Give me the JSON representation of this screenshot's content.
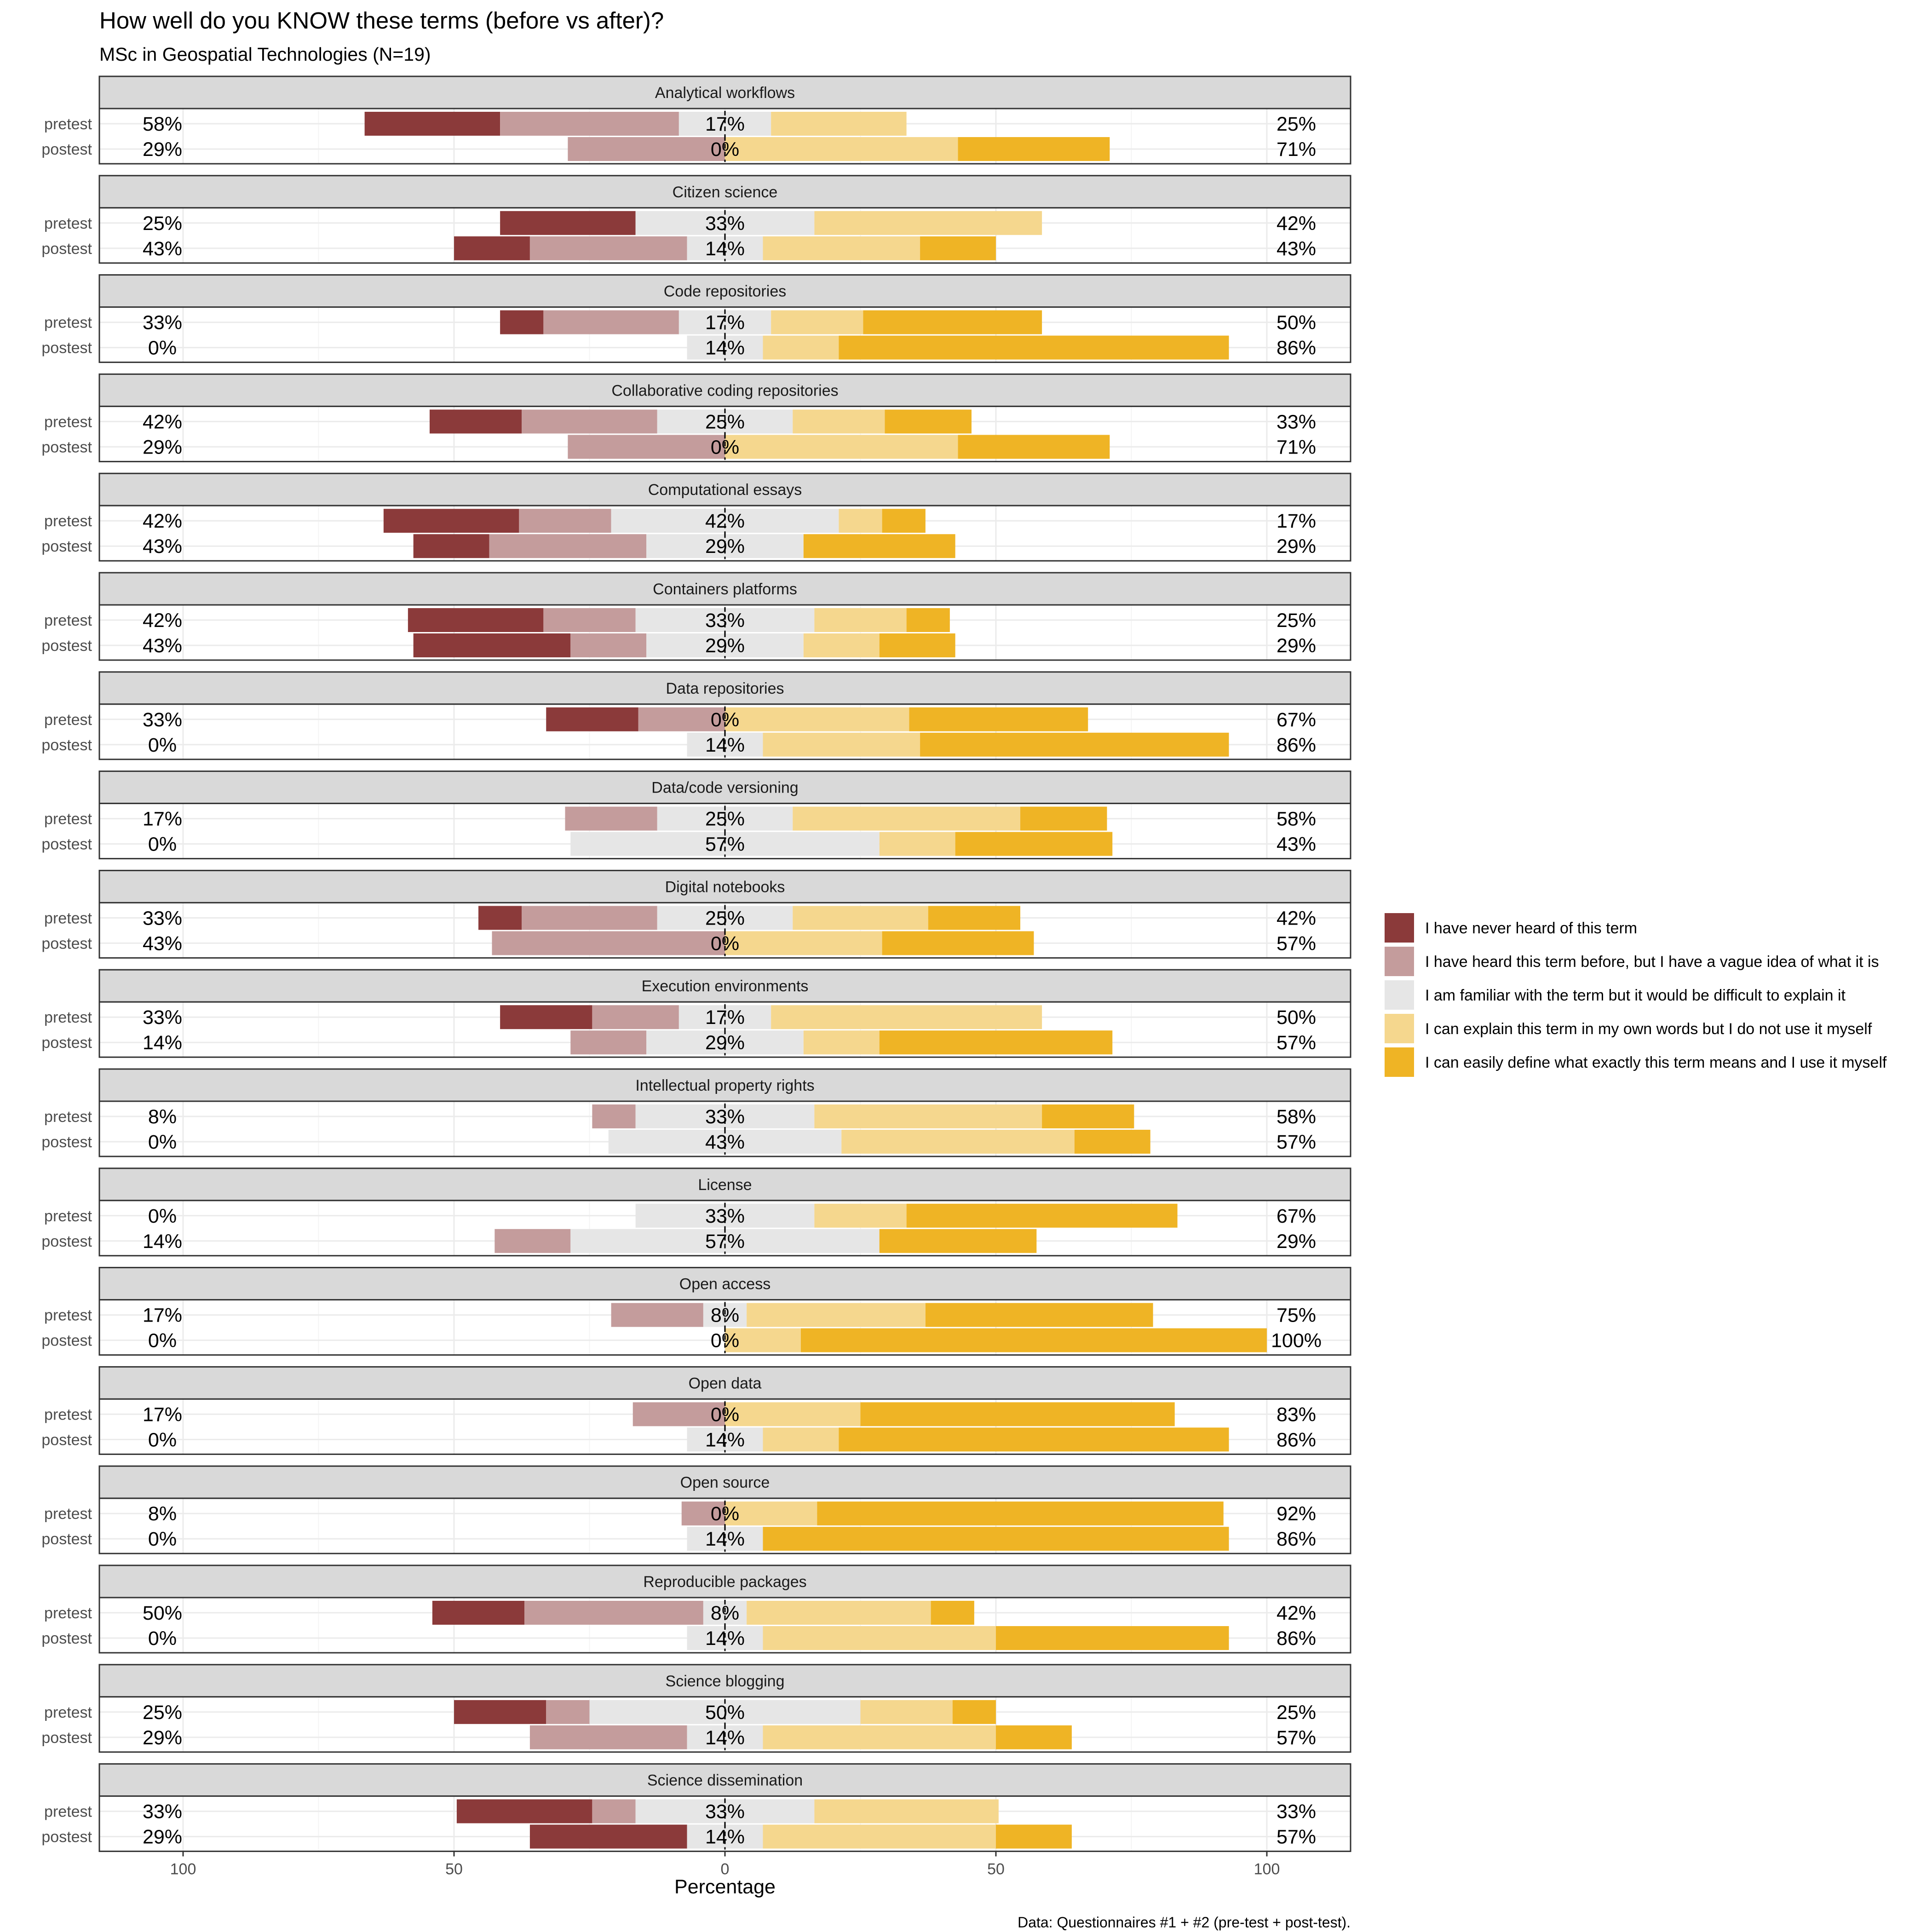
{
  "title": "How well do you KNOW these terms (before vs after)?",
  "subtitle": "MSc in Geospatial Technologies (N=19)",
  "caption": "Data: Questionnaires #1 + #2 (pre-test + post-test).",
  "colors": {
    "I have never heard of this term": "#8B3A3A",
    "I have heard this term before, but I have a vague idea of what it is": "#C49C9C",
    "I am familiar with the term but it would be difficult to explain it": "#E6E6E6",
    "I can explain this term in my own words but I do not use it myself": "#F5D78E",
    "I can easily define what exactly this term means and I use it myself": "#EFB425"
  },
  "chart_data": {
    "type": "bar",
    "orientation": "horizontal-diverging-stacked",
    "title": "How well do you KNOW these terms (before vs after)?",
    "subtitle": "MSc in Geospatial Technologies (N=19)",
    "xlabel": "Percentage",
    "ylabel": "",
    "xlim": [
      -115,
      115
    ],
    "xticks": [
      -100,
      -50,
      0,
      50,
      100
    ],
    "xticklabels": [
      "100",
      "50",
      "0",
      "50",
      "100"
    ],
    "grid": true,
    "legend_position": "right",
    "levels": [
      "I have never heard of this term",
      "I have heard this term before, but I have a vague idea of what it is",
      "I am familiar with the term but it would be difficult to explain it",
      "I can explain this term in my own words but I do not use it myself",
      "I can easily define what exactly this term means and I use it myself"
    ],
    "rows": [
      "pretest",
      "postest"
    ],
    "panels": [
      {
        "term": "Analytical workflows",
        "pretest": {
          "values": [
            25,
            33,
            17,
            25,
            0
          ],
          "left": "58%",
          "center": "17%",
          "right": "25%"
        },
        "postest": {
          "values": [
            0,
            29,
            0,
            43,
            28
          ],
          "left": "29%",
          "center": "0%",
          "right": "71%"
        }
      },
      {
        "term": "Citizen science",
        "pretest": {
          "values": [
            25,
            0,
            33,
            42,
            0
          ],
          "left": "25%",
          "center": "33%",
          "right": "42%"
        },
        "postest": {
          "values": [
            14,
            29,
            14,
            29,
            14
          ],
          "left": "43%",
          "center": "14%",
          "right": "43%"
        }
      },
      {
        "term": "Code repositories",
        "pretest": {
          "values": [
            8,
            25,
            17,
            17,
            33
          ],
          "left": "33%",
          "center": "17%",
          "right": "50%"
        },
        "postest": {
          "values": [
            0,
            0,
            14,
            14,
            72
          ],
          "left": "0%",
          "center": "14%",
          "right": "86%"
        }
      },
      {
        "term": "Collaborative coding repositories",
        "pretest": {
          "values": [
            17,
            25,
            25,
            17,
            16
          ],
          "left": "42%",
          "center": "25%",
          "right": "33%"
        },
        "postest": {
          "values": [
            0,
            29,
            0,
            43,
            28
          ],
          "left": "29%",
          "center": "0%",
          "right": "71%"
        }
      },
      {
        "term": "Computational essays",
        "pretest": {
          "values": [
            25,
            17,
            42,
            8,
            8
          ],
          "left": "42%",
          "center": "42%",
          "right": "17%"
        },
        "postest": {
          "values": [
            14,
            29,
            29,
            0,
            28
          ],
          "left": "43%",
          "center": "29%",
          "right": "29%"
        }
      },
      {
        "term": "Containers platforms",
        "pretest": {
          "values": [
            25,
            17,
            33,
            17,
            8
          ],
          "left": "42%",
          "center": "33%",
          "right": "25%"
        },
        "postest": {
          "values": [
            29,
            14,
            29,
            14,
            14
          ],
          "left": "43%",
          "center": "29%",
          "right": "29%"
        }
      },
      {
        "term": "Data repositories",
        "pretest": {
          "values": [
            17,
            16,
            0,
            34,
            33
          ],
          "left": "33%",
          "center": "0%",
          "right": "67%"
        },
        "postest": {
          "values": [
            0,
            0,
            14,
            29,
            57
          ],
          "left": "0%",
          "center": "14%",
          "right": "86%"
        }
      },
      {
        "term": "Data/code versioning",
        "pretest": {
          "values": [
            0,
            17,
            25,
            42,
            16
          ],
          "left": "17%",
          "center": "25%",
          "right": "58%"
        },
        "postest": {
          "values": [
            0,
            0,
            57,
            14,
            29
          ],
          "left": "0%",
          "center": "57%",
          "right": "43%"
        }
      },
      {
        "term": "Digital notebooks",
        "pretest": {
          "values": [
            8,
            25,
            25,
            25,
            17
          ],
          "left": "33%",
          "center": "25%",
          "right": "42%"
        },
        "postest": {
          "values": [
            0,
            43,
            0,
            29,
            28
          ],
          "left": "43%",
          "center": "0%",
          "right": "57%"
        }
      },
      {
        "term": "Execution environments",
        "pretest": {
          "values": [
            17,
            16,
            17,
            50,
            0
          ],
          "left": "33%",
          "center": "17%",
          "right": "50%"
        },
        "postest": {
          "values": [
            0,
            14,
            29,
            14,
            43
          ],
          "left": "14%",
          "center": "29%",
          "right": "57%"
        }
      },
      {
        "term": "Intellectual property rights",
        "pretest": {
          "values": [
            0,
            8,
            33,
            42,
            17
          ],
          "left": "8%",
          "center": "33%",
          "right": "58%"
        },
        "postest": {
          "values": [
            0,
            0,
            43,
            43,
            14
          ],
          "left": "0%",
          "center": "43%",
          "right": "57%"
        }
      },
      {
        "term": "License",
        "pretest": {
          "values": [
            0,
            0,
            33,
            17,
            50
          ],
          "left": "0%",
          "center": "33%",
          "right": "67%"
        },
        "postest": {
          "values": [
            0,
            14,
            57,
            0,
            29
          ],
          "left": "14%",
          "center": "57%",
          "right": "29%"
        }
      },
      {
        "term": "Open access",
        "pretest": {
          "values": [
            0,
            17,
            8,
            33,
            42
          ],
          "left": "17%",
          "center": "8%",
          "right": "75%"
        },
        "postest": {
          "values": [
            0,
            0,
            0,
            14,
            86
          ],
          "left": "0%",
          "center": "0%",
          "right": "100%"
        }
      },
      {
        "term": "Open data",
        "pretest": {
          "values": [
            0,
            17,
            0,
            25,
            58
          ],
          "left": "17%",
          "center": "0%",
          "right": "83%"
        },
        "postest": {
          "values": [
            0,
            0,
            14,
            14,
            72
          ],
          "left": "0%",
          "center": "14%",
          "right": "86%"
        }
      },
      {
        "term": "Open source",
        "pretest": {
          "values": [
            0,
            8,
            0,
            17,
            75
          ],
          "left": "8%",
          "center": "0%",
          "right": "92%"
        },
        "postest": {
          "values": [
            0,
            0,
            14,
            0,
            86
          ],
          "left": "0%",
          "center": "14%",
          "right": "86%"
        }
      },
      {
        "term": "Reproducible packages",
        "pretest": {
          "values": [
            17,
            33,
            8,
            34,
            8
          ],
          "left": "50%",
          "center": "8%",
          "right": "42%"
        },
        "postest": {
          "values": [
            0,
            0,
            14,
            43,
            43
          ],
          "left": "0%",
          "center": "14%",
          "right": "86%"
        }
      },
      {
        "term": "Science blogging",
        "pretest": {
          "values": [
            17,
            8,
            50,
            17,
            8
          ],
          "left": "25%",
          "center": "50%",
          "right": "25%"
        },
        "postest": {
          "values": [
            0,
            29,
            14,
            43,
            14
          ],
          "left": "29%",
          "center": "14%",
          "right": "57%"
        }
      },
      {
        "term": "Science dissemination",
        "pretest": {
          "values": [
            25,
            8,
            33,
            34,
            0
          ],
          "left": "33%",
          "center": "33%",
          "right": "33%"
        },
        "postest": {
          "values": [
            29,
            0,
            14,
            43,
            14
          ],
          "left": "29%",
          "center": "14%",
          "right": "57%"
        }
      }
    ]
  }
}
